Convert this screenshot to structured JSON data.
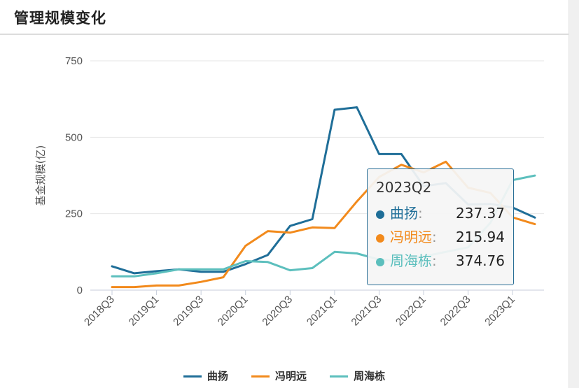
{
  "header": {
    "title": "管理规模变化"
  },
  "chart_data": {
    "type": "line",
    "ylabel": "基金规模(亿)",
    "ylim": [
      0,
      750
    ],
    "yticks": [
      0,
      250,
      500,
      750
    ],
    "x": [
      "2018Q3",
      "2018Q4",
      "2019Q1",
      "2019Q2",
      "2019Q3",
      "2019Q4",
      "2020Q1",
      "2020Q2",
      "2020Q3",
      "2020Q4",
      "2021Q1",
      "2021Q2",
      "2021Q3",
      "2021Q4",
      "2022Q1",
      "2022Q2",
      "2022Q3",
      "2022Q4",
      "2023Q1",
      "2023Q2"
    ],
    "xtick_labels": [
      "2018Q3",
      "2019Q1",
      "2019Q3",
      "2020Q1",
      "2020Q3",
      "2021Q1",
      "2021Q3",
      "2022Q1",
      "2022Q3",
      "2023Q1"
    ],
    "series": [
      {
        "name": "曲扬",
        "color": "#1f6e98",
        "values": [
          78,
          55,
          62,
          68,
          60,
          60,
          85,
          115,
          210,
          232,
          590,
          598,
          445,
          445,
          340,
          350,
          280,
          282,
          270,
          237.37
        ]
      },
      {
        "name": "冯明远",
        "color": "#f28a1c",
        "values": [
          10,
          10,
          15,
          15,
          27,
          42,
          145,
          193,
          188,
          205,
          203,
          290,
          370,
          410,
          385,
          420,
          335,
          318,
          238,
          215.94
        ]
      },
      {
        "name": "周海栋",
        "color": "#5cbfbd",
        "values": [
          45,
          45,
          55,
          68,
          68,
          68,
          95,
          92,
          65,
          72,
          125,
          120,
          100,
          95,
          110,
          125,
          140,
          220,
          360,
          374.76
        ]
      }
    ],
    "legend_position": "bottom",
    "grid": "horizontal",
    "tooltip": {
      "label": "2023Q2",
      "rows": [
        {
          "name": "曲扬",
          "value": "237.37"
        },
        {
          "name": "冯明远",
          "value": "215.94"
        },
        {
          "name": "周海栋",
          "value": "374.76"
        }
      ]
    }
  }
}
